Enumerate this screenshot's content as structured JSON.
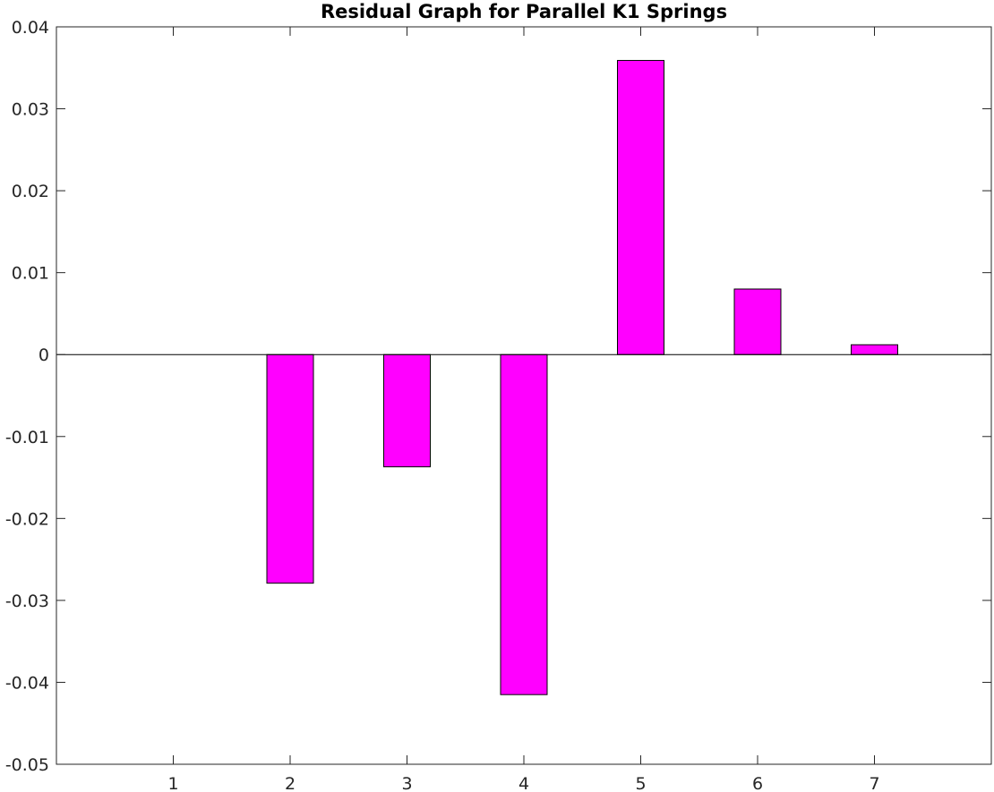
{
  "chart_data": {
    "type": "bar",
    "title": "Residual Graph for Parallel K1 Springs",
    "xlabel": "",
    "ylabel": "",
    "categories": [
      "1",
      "2",
      "3",
      "4",
      "5",
      "6",
      "7"
    ],
    "values": [
      0,
      -0.0279,
      -0.0137,
      -0.0415,
      0.0359,
      0.008,
      0.0012
    ],
    "ylim": [
      -0.05,
      0.04
    ],
    "xlim": [
      0,
      8
    ],
    "yticks": [
      0.04,
      0.03,
      0.02,
      0.01,
      0,
      -0.01,
      -0.02,
      -0.03,
      -0.04,
      -0.05
    ],
    "ytick_labels": [
      "0.04",
      "0.03",
      "0.02",
      "0.01",
      "0",
      "-0.01",
      "-0.02",
      "-0.03",
      "-0.04",
      "-0.05"
    ],
    "grid": false,
    "legend": "none",
    "bar_color": "#ff00ff",
    "bar_edge_color": "#000000",
    "zero_line": true
  }
}
